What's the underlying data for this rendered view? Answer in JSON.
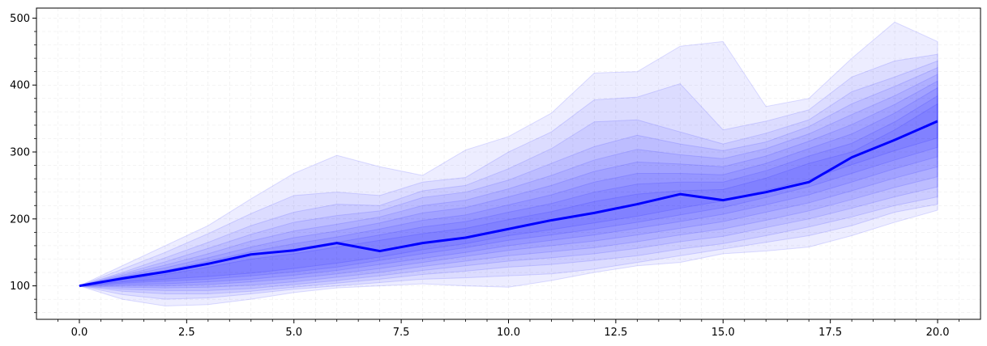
{
  "chart_data": {
    "type": "area",
    "title": "",
    "xlabel": "",
    "ylabel": "",
    "xlim": [
      -1,
      21
    ],
    "ylim": [
      50,
      515
    ],
    "grid": true,
    "x": [
      0,
      1,
      2,
      3,
      4,
      5,
      6,
      7,
      8,
      9,
      10,
      11,
      12,
      13,
      14,
      15,
      16,
      17,
      18,
      19,
      20
    ],
    "x_ticks": [
      0,
      2.5,
      5,
      7.5,
      10,
      12.5,
      15,
      17.5,
      20
    ],
    "x_tick_labels": [
      "0.0",
      "2.5",
      "5.0",
      "7.5",
      "10.0",
      "12.5",
      "15.0",
      "17.5",
      "20.0"
    ],
    "y_ticks": [
      100,
      200,
      300,
      400,
      500
    ],
    "y_tick_labels": [
      "100",
      "200",
      "300",
      "400",
      "500"
    ],
    "colors": {
      "band": "#0000ff",
      "median": "#0000ff",
      "grid": "#cccccc"
    },
    "median": [
      100,
      111,
      121,
      133,
      147,
      153,
      164,
      152,
      164,
      172,
      185,
      198,
      209,
      222,
      237,
      228,
      240,
      255,
      292,
      318,
      346
    ],
    "quantile_bands": [
      {
        "lower": [
          100,
          80,
          70,
          72,
          80,
          90,
          97,
          100,
          103,
          100,
          98,
          108,
          120,
          130,
          135,
          148,
          152,
          158,
          175,
          195,
          213
        ],
        "upper": [
          100,
          130,
          160,
          190,
          230,
          268,
          295,
          278,
          265,
          303,
          323,
          358,
          418,
          420,
          458,
          465,
          368,
          380,
          440,
          494,
          465
        ]
      },
      {
        "lower": [
          100,
          87,
          80,
          82,
          88,
          95,
          100,
          105,
          110,
          112,
          115,
          118,
          125,
          135,
          145,
          155,
          165,
          175,
          190,
          210,
          222
        ],
        "upper": [
          100,
          125,
          150,
          178,
          208,
          235,
          240,
          235,
          255,
          262,
          300,
          330,
          378,
          382,
          402,
          333,
          346,
          363,
          412,
          436,
          446
        ]
      },
      {
        "lower": [
          100,
          92,
          88,
          88,
          92,
          98,
          104,
          110,
          117,
          122,
          128,
          132,
          138,
          145,
          155,
          163,
          175,
          188,
          203,
          220,
          233
        ],
        "upper": [
          100,
          120,
          142,
          165,
          190,
          210,
          222,
          220,
          242,
          250,
          275,
          305,
          345,
          348,
          330,
          312,
          328,
          348,
          390,
          412,
          436
        ]
      },
      {
        "lower": [
          100,
          95,
          93,
          93,
          96,
          102,
          108,
          115,
          123,
          130,
          137,
          142,
          148,
          156,
          166,
          174,
          187,
          200,
          216,
          233,
          248
        ],
        "upper": [
          100,
          118,
          136,
          156,
          177,
          195,
          205,
          212,
          232,
          240,
          258,
          283,
          308,
          325,
          312,
          302,
          315,
          338,
          372,
          398,
          426
        ]
      },
      {
        "lower": [
          100,
          98,
          97,
          98,
          101,
          106,
          113,
          120,
          129,
          137,
          145,
          151,
          157,
          166,
          176,
          185,
          198,
          212,
          229,
          247,
          263
        ],
        "upper": [
          100,
          116,
          131,
          148,
          167,
          182,
          192,
          203,
          220,
          228,
          245,
          265,
          288,
          304,
          296,
          290,
          305,
          327,
          356,
          384,
          416
        ]
      },
      {
        "lower": [
          100,
          100,
          100,
          102,
          106,
          111,
          118,
          126,
          135,
          144,
          153,
          160,
          167,
          176,
          186,
          196,
          210,
          224,
          242,
          261,
          278
        ],
        "upper": [
          100,
          114,
          127,
          142,
          158,
          172,
          182,
          194,
          209,
          217,
          233,
          250,
          271,
          285,
          282,
          278,
          294,
          316,
          341,
          371,
          406
        ]
      },
      {
        "lower": [
          100,
          102,
          103,
          106,
          110,
          116,
          123,
          132,
          141,
          150,
          160,
          168,
          176,
          186,
          196,
          207,
          221,
          236,
          255,
          275,
          293
        ],
        "upper": [
          100,
          113,
          123,
          137,
          151,
          163,
          173,
          185,
          198,
          206,
          221,
          236,
          255,
          268,
          268,
          266,
          283,
          305,
          327,
          358,
          396
        ]
      },
      {
        "lower": [
          100,
          104,
          107,
          110,
          115,
          121,
          128,
          138,
          148,
          157,
          168,
          176,
          185,
          195,
          206,
          217,
          232,
          248,
          268,
          288,
          307
        ],
        "upper": [
          100,
          112,
          120,
          132,
          145,
          155,
          165,
          176,
          188,
          196,
          210,
          223,
          240,
          252,
          255,
          255,
          272,
          294,
          313,
          345,
          384
        ]
      },
      {
        "lower": [
          100,
          106,
          110,
          114,
          119,
          126,
          134,
          143,
          154,
          163,
          175,
          184,
          194,
          204,
          216,
          227,
          243,
          259,
          281,
          302,
          321
        ],
        "upper": [
          100,
          110,
          117,
          128,
          140,
          148,
          158,
          168,
          178,
          186,
          199,
          211,
          226,
          237,
          242,
          244,
          261,
          283,
          300,
          333,
          372
        ]
      }
    ]
  }
}
